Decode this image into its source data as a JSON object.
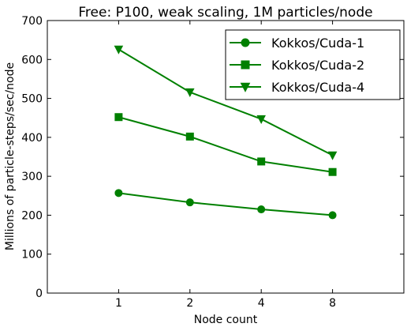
{
  "chart_data": {
    "type": "line",
    "title": "Free: P100, weak scaling, 1M particles/node",
    "xlabel": "Node count",
    "ylabel": "Millions of particle-steps/sec/node",
    "categories": [
      "1",
      "2",
      "4",
      "8"
    ],
    "ylim": [
      0,
      700
    ],
    "yticks": [
      "0",
      "100",
      "200",
      "300",
      "400",
      "500",
      "600",
      "700"
    ],
    "grid": false,
    "legend_position": "top-right",
    "color": "#008000",
    "series": [
      {
        "name": "Kokkos/Cuda-1",
        "marker": "circle",
        "values": [
          257,
          233,
          215,
          200
        ]
      },
      {
        "name": "Kokkos/Cuda-2",
        "marker": "square",
        "values": [
          452,
          402,
          338,
          311
        ]
      },
      {
        "name": "Kokkos/Cuda-4",
        "marker": "triangle-down",
        "values": [
          626,
          516,
          447,
          354
        ]
      }
    ]
  }
}
